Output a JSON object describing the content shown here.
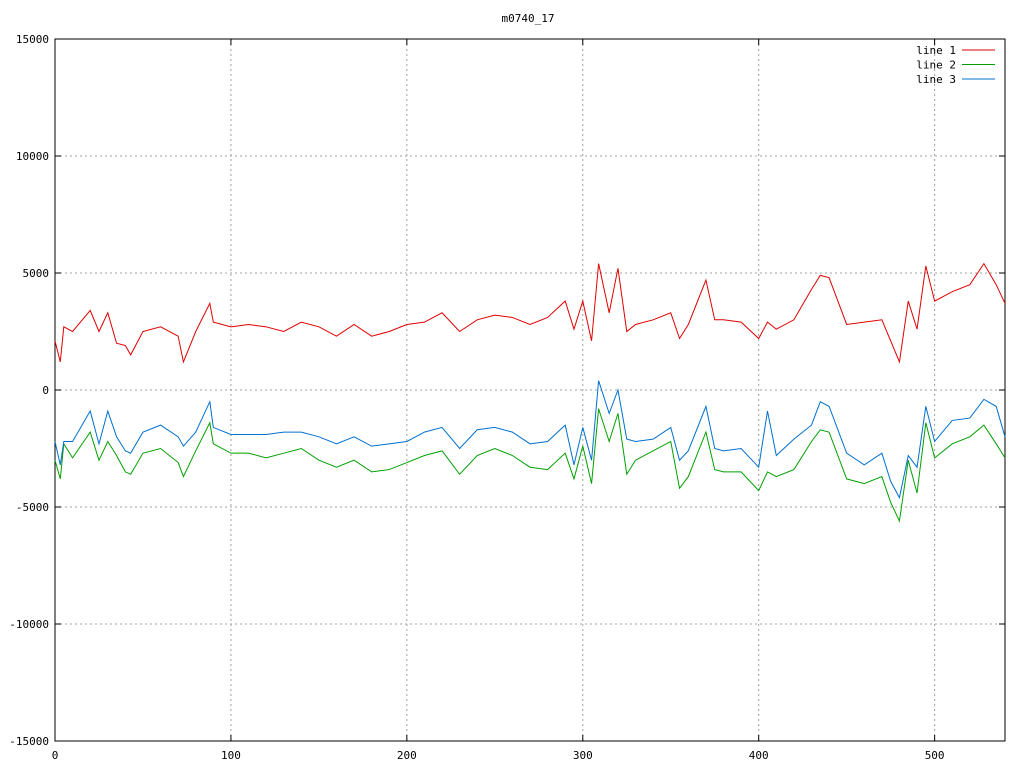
{
  "chart_data": {
    "type": "line",
    "title": "m0740_17",
    "x": [
      0,
      3,
      5,
      10,
      20,
      25,
      30,
      35,
      40,
      43,
      50,
      60,
      70,
      73,
      80,
      88,
      90,
      100,
      110,
      120,
      130,
      140,
      150,
      160,
      170,
      180,
      190,
      200,
      210,
      220,
      230,
      240,
      250,
      260,
      270,
      280,
      290,
      295,
      300,
      305,
      309,
      315,
      320,
      325,
      330,
      340,
      350,
      355,
      360,
      370,
      375,
      380,
      390,
      400,
      405,
      410,
      420,
      430,
      435,
      440,
      450,
      460,
      470,
      475,
      480,
      485,
      490,
      495,
      500,
      510,
      520,
      528,
      535,
      540
    ],
    "series": [
      {
        "name": "line 1",
        "color": "#e00000",
        "values": [
          2100,
          1200,
          2700,
          2500,
          3400,
          2500,
          3300,
          2000,
          1900,
          1500,
          2500,
          2700,
          2300,
          1200,
          2500,
          3700,
          2900,
          2700,
          2800,
          2700,
          2500,
          2900,
          2700,
          2300,
          2800,
          2300,
          2500,
          2800,
          2900,
          3300,
          2500,
          3000,
          3200,
          3100,
          2800,
          3100,
          3800,
          2600,
          3800,
          2100,
          5400,
          3300,
          5200,
          2500,
          2800,
          3000,
          3300,
          2200,
          2800,
          4700,
          3000,
          3000,
          2900,
          2200,
          2900,
          2600,
          3000,
          4300,
          4900,
          4800,
          2800,
          2900,
          3000,
          2100,
          1200,
          3800,
          2600,
          5300,
          3800,
          4200,
          4500,
          5400,
          4500,
          3700
        ]
      },
      {
        "name": "line 2",
        "color": "#00a000",
        "values": [
          -3000,
          -3800,
          -2300,
          -2900,
          -1800,
          -3000,
          -2200,
          -2800,
          -3500,
          -3600,
          -2700,
          -2500,
          -3100,
          -3700,
          -2600,
          -1400,
          -2300,
          -2700,
          -2700,
          -2900,
          -2700,
          -2500,
          -3000,
          -3300,
          -3000,
          -3500,
          -3400,
          -3100,
          -2800,
          -2600,
          -3600,
          -2800,
          -2500,
          -2800,
          -3300,
          -3400,
          -2700,
          -3800,
          -2400,
          -4000,
          -800,
          -2200,
          -1000,
          -3600,
          -3000,
          -2600,
          -2200,
          -4200,
          -3700,
          -1800,
          -3400,
          -3500,
          -3500,
          -4300,
          -3500,
          -3700,
          -3400,
          -2200,
          -1700,
          -1800,
          -3800,
          -4000,
          -3700,
          -4800,
          -5600,
          -3000,
          -4400,
          -1400,
          -2900,
          -2300,
          -2000,
          -1500,
          -2300,
          -2900
        ]
      },
      {
        "name": "line 3",
        "color": "#0070d0",
        "values": [
          -2200,
          -3200,
          -2200,
          -2200,
          -900,
          -2300,
          -900,
          -2000,
          -2600,
          -2700,
          -1800,
          -1500,
          -2000,
          -2400,
          -1800,
          -500,
          -1600,
          -1900,
          -1900,
          -1900,
          -1800,
          -1800,
          -2000,
          -2300,
          -2000,
          -2400,
          -2300,
          -2200,
          -1800,
          -1600,
          -2500,
          -1700,
          -1600,
          -1800,
          -2300,
          -2200,
          -1500,
          -3200,
          -1600,
          -3000,
          400,
          -1000,
          0,
          -2100,
          -2200,
          -2100,
          -1600,
          -3000,
          -2600,
          -700,
          -2500,
          -2600,
          -2500,
          -3300,
          -900,
          -2800,
          -2100,
          -1500,
          -500,
          -700,
          -2700,
          -3200,
          -2700,
          -3900,
          -4600,
          -2800,
          -3300,
          -700,
          -2200,
          -1300,
          -1200,
          -400,
          -700,
          -2000
        ]
      }
    ],
    "xlim": [
      0,
      540
    ],
    "xticks": [
      0,
      100,
      200,
      300,
      400,
      500
    ],
    "ylim": [
      -15000,
      15000
    ],
    "yticks": [
      -15000,
      -10000,
      -5000,
      0,
      5000,
      10000,
      15000
    ],
    "grid": true,
    "legend": "top-right"
  }
}
